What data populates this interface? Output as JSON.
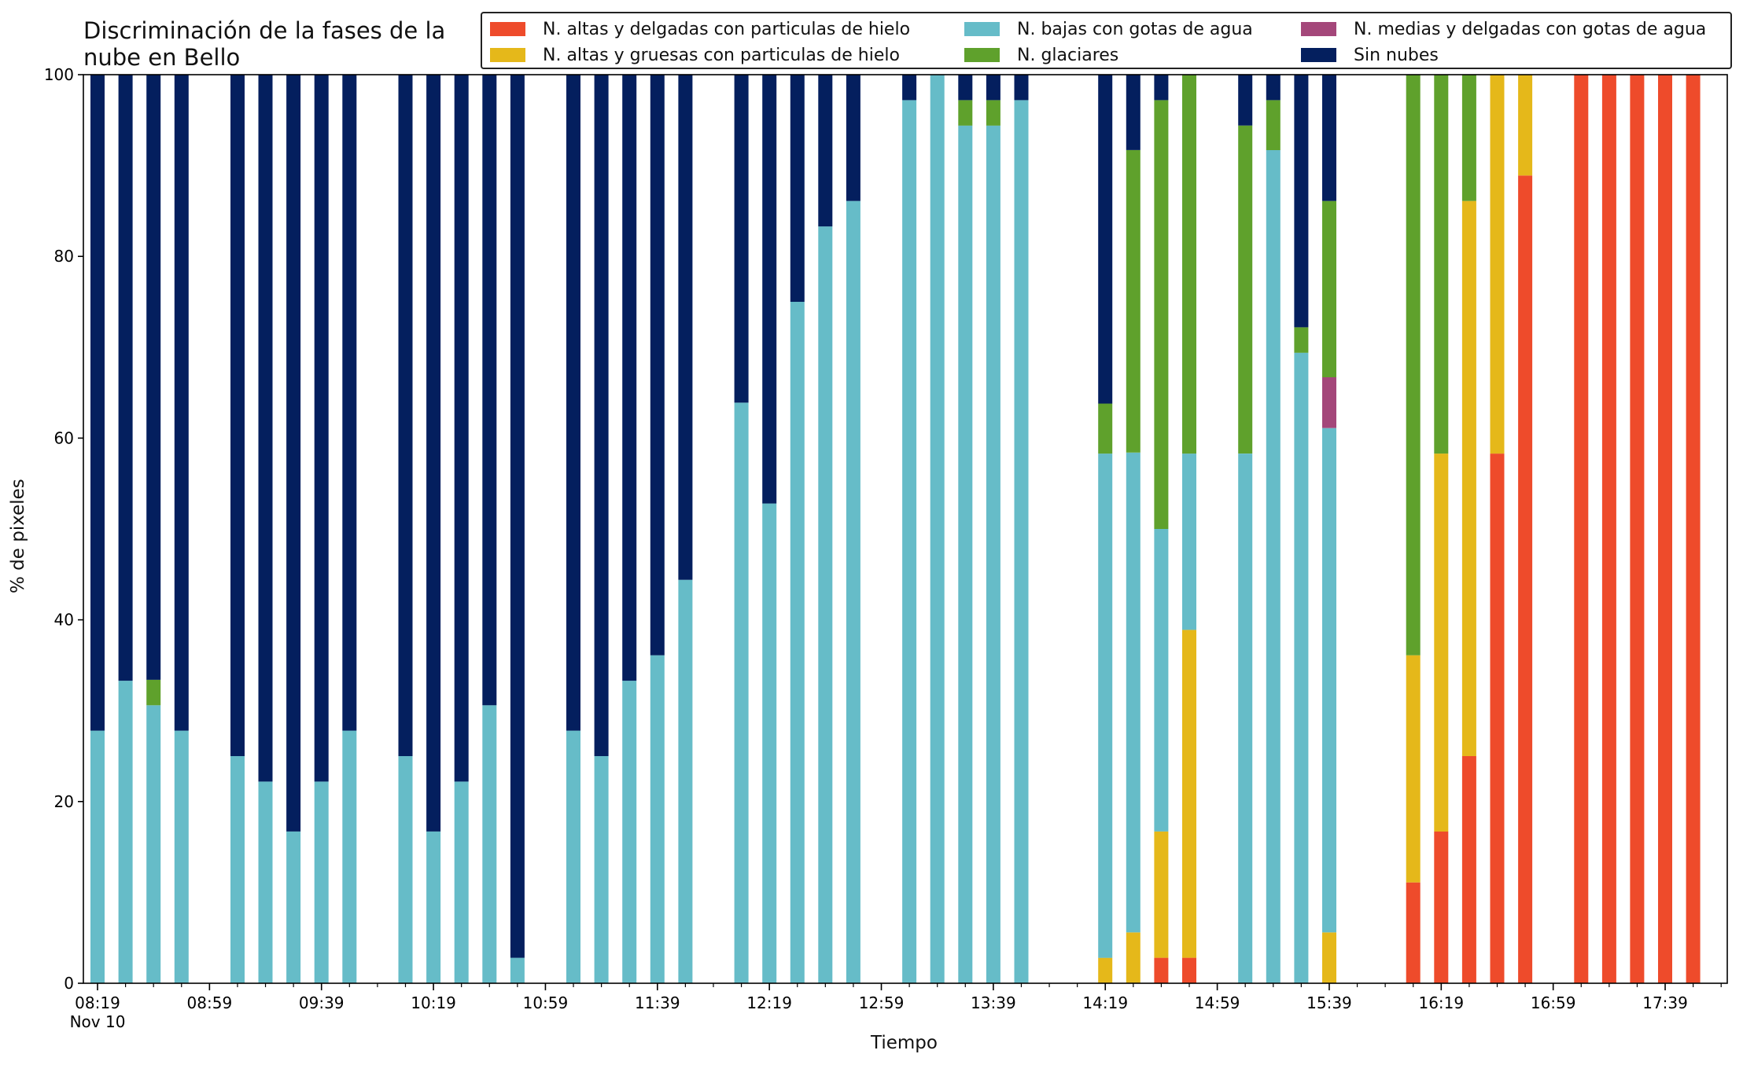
{
  "chart_data": {
    "type": "bar",
    "stacked": true,
    "title_lines": [
      "Discriminación de la fases de la",
      "nube en Bello"
    ],
    "xlabel": "Tiempo",
    "ylabel": "% de pixeles",
    "ylim": [
      0,
      100
    ],
    "yticks": [
      0,
      20,
      40,
      60,
      80,
      100
    ],
    "x_date_label": "Nov 10",
    "x_tick_labels": [
      "08:19",
      "08:59",
      "09:39",
      "10:19",
      "10:59",
      "11:39",
      "12:19",
      "12:59",
      "13:39",
      "14:19",
      "14:59",
      "15:39",
      "16:19",
      "16:59",
      "17:39"
    ],
    "x_minor_ticks_per_interval": 4,
    "bar_interval_minutes": 10,
    "legend_position": "top-right",
    "times": [
      "08:19",
      "08:29",
      "08:39",
      "08:49",
      "09:09",
      "09:19",
      "09:29",
      "09:39",
      "09:49",
      "10:09",
      "10:19",
      "10:29",
      "10:39",
      "10:49",
      "11:09",
      "11:19",
      "11:29",
      "11:39",
      "11:49",
      "12:09",
      "12:19",
      "12:29",
      "12:39",
      "12:49",
      "13:09",
      "13:19",
      "13:29",
      "13:39",
      "13:49",
      "14:19",
      "14:29",
      "14:39",
      "14:49",
      "15:09",
      "15:19",
      "15:29",
      "15:39",
      "16:09",
      "16:19",
      "16:29",
      "16:39",
      "16:49",
      "17:09",
      "17:19",
      "17:29",
      "17:39",
      "17:49"
    ],
    "series": [
      {
        "name": "N. altas y delgadas con particulas de hielo",
        "color": "#EE4B2B",
        "values": [
          0,
          0,
          0,
          0,
          0,
          0,
          0,
          0,
          0,
          0,
          0,
          0,
          0,
          0,
          0,
          0,
          0,
          0,
          0,
          0,
          0,
          0,
          0,
          0,
          0,
          0,
          0,
          0,
          0,
          0,
          0,
          2.8,
          2.8,
          0,
          0,
          0,
          0,
          11.1,
          16.7,
          25,
          58.3,
          88.9,
          100,
          100,
          100,
          100,
          100
        ]
      },
      {
        "name": "N. altas y gruesas con particulas de hielo",
        "color": "#E5B81A",
        "values": [
          0,
          0,
          0,
          0,
          0,
          0,
          0,
          0,
          0,
          0,
          0,
          0,
          0,
          0,
          0,
          0,
          0,
          0,
          0,
          0,
          0,
          0,
          0,
          0,
          0,
          0,
          0,
          0,
          0,
          2.8,
          5.6,
          13.9,
          36.1,
          0,
          0,
          0,
          5.6,
          25,
          41.6,
          61.1,
          41.7,
          11.1,
          0,
          0,
          0,
          0,
          0
        ]
      },
      {
        "name": "N. bajas con gotas de agua",
        "color": "#66BCC8",
        "values": [
          27.8,
          33.3,
          30.6,
          27.8,
          25,
          22.2,
          16.7,
          22.2,
          27.8,
          25,
          16.7,
          22.2,
          30.6,
          2.8,
          27.8,
          25,
          33.3,
          36.1,
          44.4,
          63.9,
          52.8,
          75,
          83.3,
          86.1,
          97.2,
          100,
          94.4,
          94.4,
          97.2,
          55.5,
          52.8,
          33.3,
          19.4,
          58.3,
          91.7,
          69.4,
          55.5,
          0,
          0,
          0,
          0,
          0,
          0,
          0,
          0,
          0,
          0
        ]
      },
      {
        "name": "N. medias y delgadas con gotas de agua",
        "color": "#A4477A",
        "values": [
          0,
          0,
          0,
          0,
          0,
          0,
          0,
          0,
          0,
          0,
          0,
          0,
          0,
          0,
          0,
          0,
          0,
          0,
          0,
          0,
          0,
          0,
          0,
          0,
          0,
          0,
          0,
          0,
          0,
          0,
          0,
          0,
          0,
          0,
          0,
          0,
          5.6,
          0,
          0,
          0,
          0,
          0,
          0,
          0,
          0,
          0,
          0
        ]
      },
      {
        "name": "N. glaciares",
        "color": "#5FA12C",
        "values": [
          0,
          0,
          2.8,
          0,
          0,
          0,
          0,
          0,
          0,
          0,
          0,
          0,
          0,
          0,
          0,
          0,
          0,
          0,
          0,
          0,
          0,
          0,
          0,
          0,
          0,
          0,
          2.8,
          2.8,
          0,
          5.5,
          33.3,
          47.2,
          41.7,
          36.1,
          5.5,
          2.8,
          19.4,
          63.9,
          41.7,
          13.9,
          0,
          0,
          0,
          0,
          0,
          0,
          0
        ]
      },
      {
        "name": "Sin nubes",
        "color": "#041F5E",
        "values": [
          72.2,
          66.7,
          66.6,
          72.2,
          75,
          77.8,
          83.3,
          77.8,
          72.2,
          75,
          83.3,
          77.8,
          69.4,
          97.2,
          72.2,
          75,
          66.7,
          63.9,
          55.6,
          36.1,
          47.2,
          25,
          16.7,
          13.9,
          2.8,
          0,
          2.8,
          2.8,
          2.8,
          36.2,
          8.3,
          2.8,
          0,
          5.6,
          2.8,
          27.8,
          13.9,
          0,
          0,
          0,
          0,
          0,
          0,
          0,
          0,
          0,
          0
        ]
      }
    ]
  }
}
